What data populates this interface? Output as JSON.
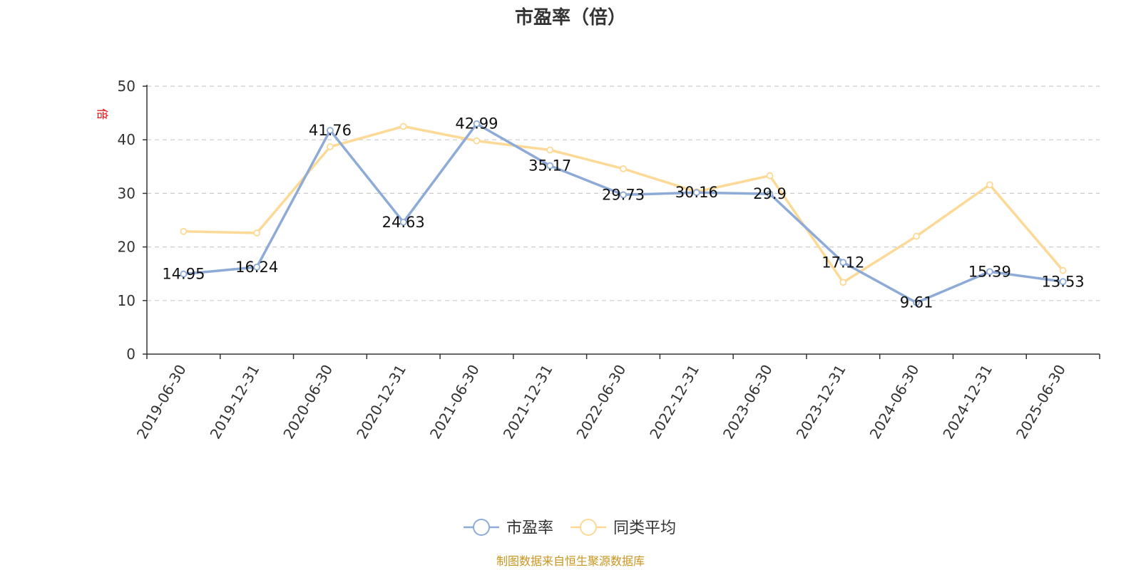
{
  "chart_data": {
    "type": "line",
    "title": "市盈率（倍）",
    "unit_label": "倍",
    "ylim": [
      0,
      50
    ],
    "y_ticks": [
      0,
      10,
      20,
      30,
      40,
      50
    ],
    "grid": true,
    "categories": [
      "2019-06-30",
      "2019-12-31",
      "2020-06-30",
      "2020-12-31",
      "2021-06-30",
      "2021-12-31",
      "2022-06-30",
      "2022-12-31",
      "2023-06-30",
      "2023-12-31",
      "2024-06-30",
      "2024-12-31",
      "2025-06-30"
    ],
    "series": [
      {
        "name": "市盈率",
        "color": "#8eabd8",
        "show_labels": true,
        "values": [
          14.95,
          16.24,
          41.76,
          24.63,
          42.99,
          35.17,
          29.73,
          30.16,
          29.9,
          17.12,
          9.61,
          15.39,
          13.53
        ]
      },
      {
        "name": "同类平均",
        "color": "#fcd996",
        "show_labels": false,
        "values": [
          22.9,
          22.6,
          38.7,
          42.5,
          39.8,
          38.1,
          34.6,
          30.3,
          33.3,
          13.4,
          22.0,
          31.6,
          15.6
        ]
      }
    ],
    "legend_position": "bottom-center"
  },
  "source_text": "制图数据来自恒生聚源数据库"
}
